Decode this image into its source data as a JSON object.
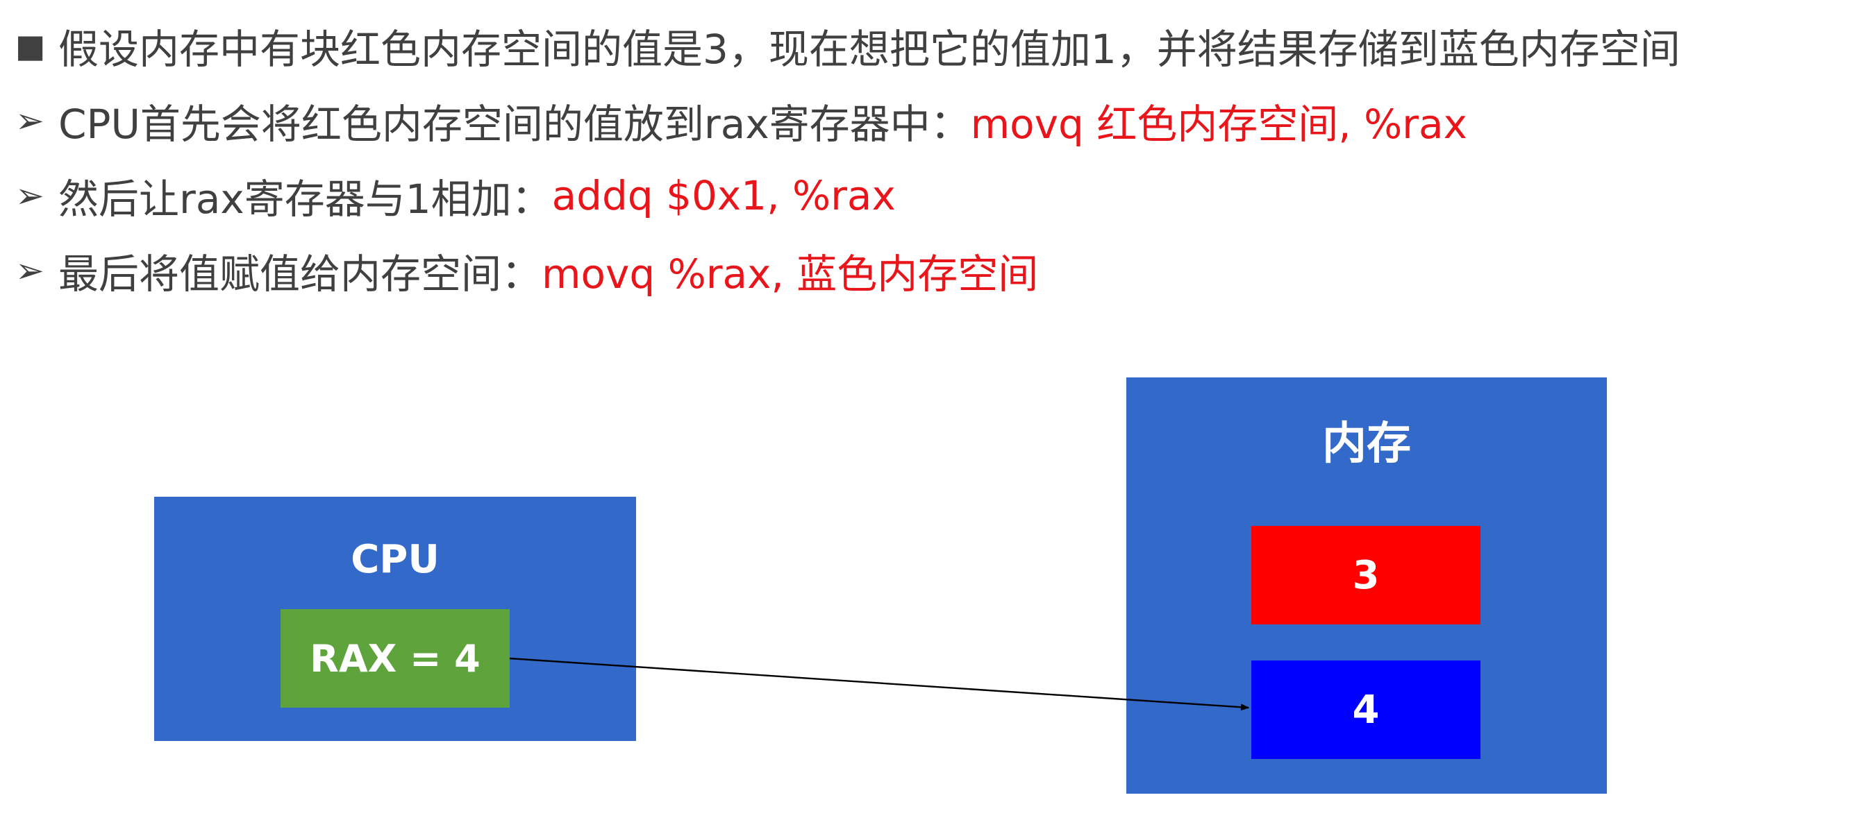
{
  "bullets": [
    {
      "marker": "■",
      "text": "假设内存中有块红色内存空间的值是3，现在想把它的值加1，并将结果存储到蓝色内存空间",
      "code": ""
    },
    {
      "marker": "➢",
      "text": "CPU首先会将红色内存空间的值放到rax寄存器中：",
      "code": "movq 红色内存空间, %rax"
    },
    {
      "marker": "➢",
      "text": "然后让rax寄存器与1相加：",
      "code": "addq $0x1, %rax"
    },
    {
      "marker": "➢",
      "text": "最后将值赋值给内存空间：",
      "code": "movq %rax, 蓝色内存空间"
    }
  ],
  "cpu": {
    "title": "CPU",
    "register_label": "RAX = 4"
  },
  "memory": {
    "title": "内存",
    "red_cell_value": "3",
    "blue_cell_value": "4"
  },
  "colors": {
    "text": "#404040",
    "code": "#e8151b",
    "box_blue": "#3369c8",
    "register_green": "#5fa33d",
    "cell_red": "#ff0000",
    "cell_blue": "#0000ff"
  }
}
